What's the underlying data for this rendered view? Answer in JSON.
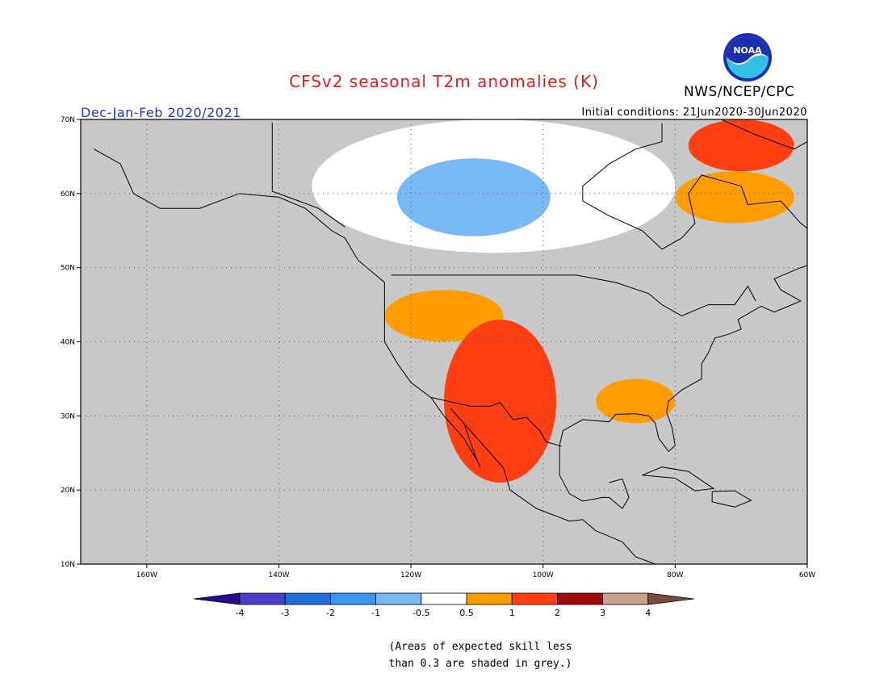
{
  "title": "CFSv2 seasonal T2m anomalies (K)",
  "period": "Dec-Jan-Feb 2020/2021",
  "initial_conditions": "Initial conditions: 21Jun2020-30Jun2020",
  "agency": "NWS/NCEP/CPC",
  "logo_text": "NOAA",
  "colors": {
    "title": "#e0201a",
    "period": "#2233dd",
    "grey_mask": "#c8c8c8",
    "ocean_bg": "#c8c8c8"
  },
  "map": {
    "lon_labels": [
      "160W",
      "140W",
      "120W",
      "100W",
      "80W",
      "60W"
    ],
    "lat_labels": [
      "70N",
      "60N",
      "50N",
      "40N",
      "30N",
      "20N",
      "10N"
    ],
    "lon_range": [
      -170,
      -60
    ],
    "lat_range": [
      10,
      70
    ]
  },
  "colorbar": {
    "boundaries": [
      "-4",
      "-3",
      "-2",
      "-1",
      "-0.5",
      "0.5",
      "1",
      "2",
      "3",
      "4"
    ],
    "colors": [
      "#2a0a8c",
      "#4a3ec8",
      "#1f6fd8",
      "#3c96ee",
      "#78b8f5",
      "#ffffff",
      "#ff9d00",
      "#ff3f12",
      "#a10a0a",
      "#c8a08e",
      "#7a4e3e"
    ]
  },
  "note": [
    "(Areas of expected skill less",
    "than 0.3 are shaded in grey.)"
  ],
  "anomaly_regions": [
    {
      "label": "Canadian Prairies cool",
      "category": "-1..-0.5",
      "lon": [
        -125,
        -96
      ],
      "lat": [
        52,
        67
      ]
    },
    {
      "label": "Northern Canada neutral",
      "category": "-0.5..0.5",
      "lon": [
        -135,
        -80
      ],
      "lat": [
        52,
        70
      ]
    },
    {
      "label": "Northwest US warm",
      "category": "0.5..1",
      "lon": [
        -124,
        -106
      ],
      "lat": [
        40,
        47
      ]
    },
    {
      "label": "Southwest US/Mexico warm",
      "category": "1..2",
      "lon": [
        -115,
        -98
      ],
      "lat": [
        21,
        43
      ]
    },
    {
      "label": "Gulf coast warm",
      "category": "0.5..1",
      "lon": [
        -92,
        -80
      ],
      "lat": [
        29,
        35
      ]
    },
    {
      "label": "Greenland/Baffin warm",
      "category": "1..2",
      "lon": [
        -78,
        -62
      ],
      "lat": [
        63,
        70
      ]
    },
    {
      "label": "Labrador warm",
      "category": "0.5..1",
      "lon": [
        -80,
        -62
      ],
      "lat": [
        56,
        63
      ]
    }
  ]
}
